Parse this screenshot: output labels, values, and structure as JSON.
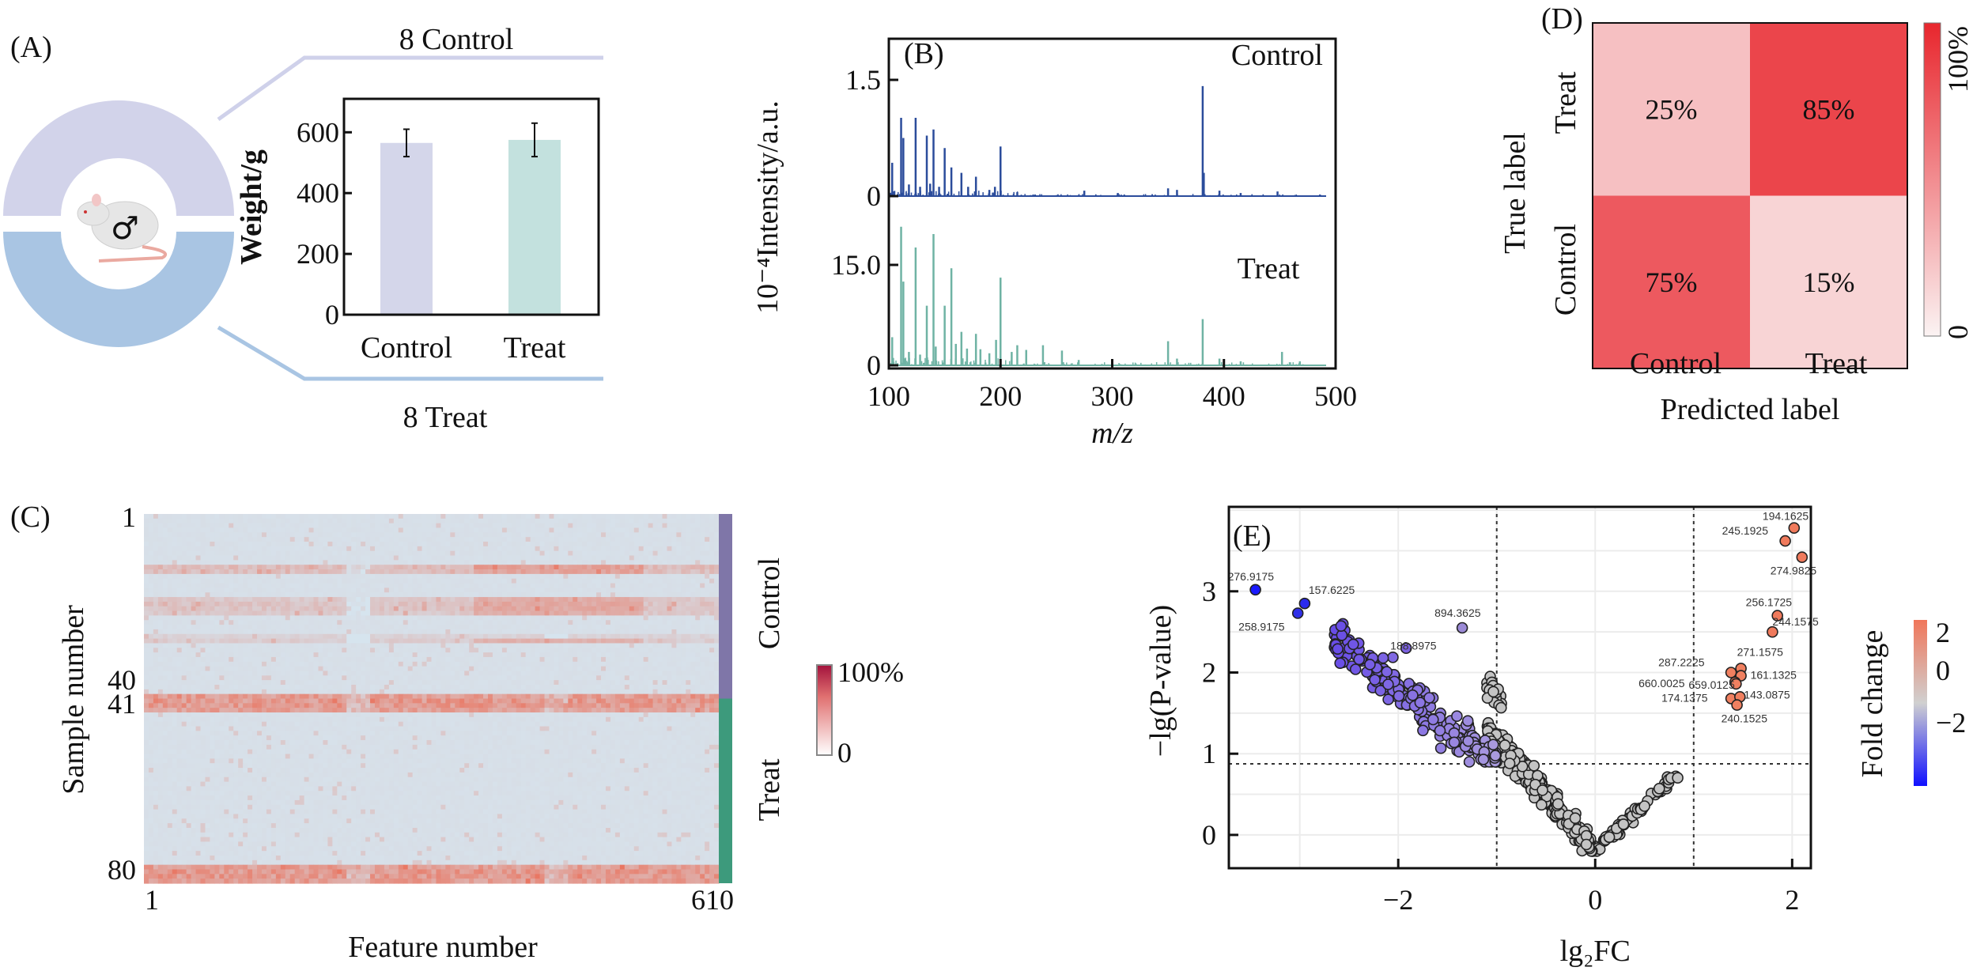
{
  "panels": {
    "a": "(A)",
    "b": "(B)",
    "c": "(C)",
    "d": "(D)",
    "e": "(E)"
  },
  "panel_a": {
    "top_label": "8 Control",
    "bottom_label": "8 Treat",
    "male_symbol": "♂"
  },
  "chart_data": [
    {
      "id": "weight",
      "type": "bar",
      "categories": [
        "Control",
        "Treat"
      ],
      "values": [
        565,
        575
      ],
      "errors": [
        45,
        55
      ],
      "ylabel": "Weight/g",
      "yticks": [
        "0",
        "200",
        "400",
        "600"
      ],
      "ylim": [
        0,
        710
      ],
      "colors": [
        "#d4d6ea",
        "#c3e1de"
      ]
    },
    {
      "id": "spectra",
      "type": "line",
      "xlabel": "m/z",
      "ylabel": "10⁻⁴Intensity/a.u.",
      "xlim": [
        100,
        500
      ],
      "xticks": [
        "100",
        "200",
        "300",
        "400",
        "500"
      ],
      "series": [
        {
          "name": "Control",
          "color": "#2b4c9b",
          "ylim": [
            0,
            1.85
          ],
          "yticks": [
            "0",
            "1.5"
          ],
          "ytick_values": [
            0,
            1.5
          ],
          "peaks": [
            [
              103,
              0.43
            ],
            [
              111,
              1.01
            ],
            [
              113,
              0.75
            ],
            [
              118,
              0.15
            ],
            [
              124,
              1.01
            ],
            [
              128,
              0.12
            ],
            [
              134,
              0.78
            ],
            [
              137,
              0.16
            ],
            [
              140,
              0.86
            ],
            [
              145,
              0.12
            ],
            [
              150,
              0.62
            ],
            [
              156,
              0.37
            ],
            [
              165,
              0.3
            ],
            [
              171,
              0.12
            ],
            [
              178,
              0.25
            ],
            [
              190,
              0.08
            ],
            [
              195,
              0.12
            ],
            [
              200,
              0.64
            ],
            [
              215,
              0.05
            ],
            [
              275,
              0.07
            ],
            [
              305,
              0.04
            ],
            [
              350,
              0.1
            ],
            [
              358,
              0.08
            ],
            [
              381,
              1.42
            ],
            [
              382,
              0.3
            ],
            [
              396,
              0.07
            ],
            [
              415,
              0.04
            ],
            [
              448,
              0.06
            ],
            [
              486,
              0.02
            ]
          ]
        },
        {
          "name": "Treat",
          "color": "#6fb3a4",
          "ylim": [
            0,
            23
          ],
          "yticks": [
            "0",
            "15.0"
          ],
          "ytick_values": [
            0,
            15
          ],
          "peaks": [
            [
              103,
              4.2
            ],
            [
              111,
              20.7
            ],
            [
              113,
              12.5
            ],
            [
              118,
              2.0
            ],
            [
              124,
              17.6
            ],
            [
              128,
              1.6
            ],
            [
              134,
              8.9
            ],
            [
              140,
              19.6
            ],
            [
              142,
              2.8
            ],
            [
              150,
              8.9
            ],
            [
              156,
              14.5
            ],
            [
              160,
              3.2
            ],
            [
              165,
              5.0
            ],
            [
              170,
              2.5
            ],
            [
              178,
              4.7
            ],
            [
              182,
              2.4
            ],
            [
              190,
              1.8
            ],
            [
              196,
              3.8
            ],
            [
              200,
              13.1
            ],
            [
              210,
              2.0
            ],
            [
              215,
              3.0
            ],
            [
              223,
              2.3
            ],
            [
              238,
              3.0
            ],
            [
              255,
              2.2
            ],
            [
              270,
              0.8
            ],
            [
              300,
              0.6
            ],
            [
              350,
              3.6
            ],
            [
              358,
              1.0
            ],
            [
              381,
              6.9
            ],
            [
              396,
              1.0
            ],
            [
              415,
              0.6
            ],
            [
              452,
              2.0
            ],
            [
              468,
              0.6
            ]
          ]
        }
      ]
    },
    {
      "id": "heatmap",
      "type": "heatmap",
      "rows": 80,
      "cols": 610,
      "ylabel": "Sample number",
      "xlabel": "Feature number",
      "yticks": [
        "1",
        "40",
        "41",
        "80"
      ],
      "xticks": [
        "1",
        "610"
      ],
      "groups": [
        {
          "name": "Control",
          "rows": [
            1,
            40
          ],
          "color": "#7f76a8"
        },
        {
          "name": "Treat",
          "rows": [
            41,
            80
          ],
          "color": "#3d9a7c"
        }
      ],
      "colorbar": {
        "max": "100%",
        "min": "0",
        "high": "#a3123c",
        "low": "#ffffff"
      },
      "row_intensity": {
        "12": 0.45,
        "13": 0.4,
        "19": 0.3,
        "20": 0.35,
        "21": 0.35,
        "22": 0.3,
        "27": 0.2,
        "28": 0.25,
        "40": 0.75,
        "41": 0.8,
        "42": 0.8,
        "43": 0.7,
        "77": 0.75,
        "78": 0.8,
        "79": 0.8,
        "80": 0.75
      }
    },
    {
      "id": "confusion",
      "type": "heatmap",
      "xlabel": "Predicted label",
      "ylabel": "True label",
      "x": [
        "Control",
        "Treat"
      ],
      "y": [
        "Treat",
        "Control"
      ],
      "values": [
        [
          25,
          85
        ],
        [
          75,
          15
        ]
      ],
      "cell_text": [
        [
          "25%",
          "85%"
        ],
        [
          "75%",
          "15%"
        ]
      ],
      "colorbar": {
        "max": "100%",
        "min": "0"
      }
    },
    {
      "id": "volcano",
      "type": "scatter",
      "xlabel": "lg₂FC",
      "ylabel": "−lg(P-value)",
      "xlim": [
        -3.72,
        2.19
      ],
      "ylim": [
        -0.41,
        4.04
      ],
      "xticks": [
        -2,
        0,
        2
      ],
      "xtick_labels": [
        "−2",
        "0",
        "2"
      ],
      "yticks": [
        0,
        1,
        2,
        3
      ],
      "ytick_labels": [
        "0",
        "1",
        "2",
        "3"
      ],
      "fc_threshold": [
        -1,
        1
      ],
      "p_threshold": 0.875,
      "colorbar": {
        "title": "Fold change",
        "ticks": [
          "2",
          "0",
          "−2"
        ]
      },
      "labeled_points": [
        {
          "label": "276.9175",
          "x": -3.45,
          "y": 3.02,
          "color": "#1a1aff"
        },
        {
          "label": "157.6225",
          "x": -2.95,
          "y": 2.85,
          "color": "#2a2aee"
        },
        {
          "label": "258.9175",
          "x": -3.02,
          "y": 2.73,
          "color": "#3030e8"
        },
        {
          "label": "894.3625",
          "x": -1.35,
          "y": 2.55,
          "color": "#9b8ad6"
        },
        {
          "label": "188.8975",
          "x": -1.92,
          "y": 2.3,
          "color": "#7c62e0"
        },
        {
          "label": "194.1625",
          "x": 2.02,
          "y": 3.78,
          "color": "#f07a5c"
        },
        {
          "label": "245.1925",
          "x": 1.93,
          "y": 3.62,
          "color": "#f07a5c"
        },
        {
          "label": "274.9825",
          "x": 2.1,
          "y": 3.42,
          "color": "#f07a5c"
        },
        {
          "label": "256.1725",
          "x": 1.85,
          "y": 2.7,
          "color": "#f07a5c"
        },
        {
          "label": "244.1575",
          "x": 1.8,
          "y": 2.5,
          "color": "#f07a5c"
        },
        {
          "label": "271.1575",
          "x": 1.48,
          "y": 2.05,
          "color": "#f08060"
        },
        {
          "label": "287.2225",
          "x": 1.38,
          "y": 2.0,
          "color": "#f08060"
        },
        {
          "label": "161.1325",
          "x": 1.48,
          "y": 1.96,
          "color": "#f08060"
        },
        {
          "label": "660.0025",
          "x": 1.42,
          "y": 1.88,
          "color": "#f08060"
        },
        {
          "label": "659.0125",
          "x": 1.43,
          "y": 1.86,
          "color": "#f08060"
        },
        {
          "label": "174.1375",
          "x": 1.38,
          "y": 1.68,
          "color": "#f08060"
        },
        {
          "label": "143.0875",
          "x": 1.47,
          "y": 1.7,
          "color": "#f08060"
        },
        {
          "label": "240.1525",
          "x": 1.44,
          "y": 1.6,
          "color": "#f08060"
        }
      ],
      "background_points": {
        "grey_count": 420,
        "purple_count": 200
      }
    }
  ]
}
